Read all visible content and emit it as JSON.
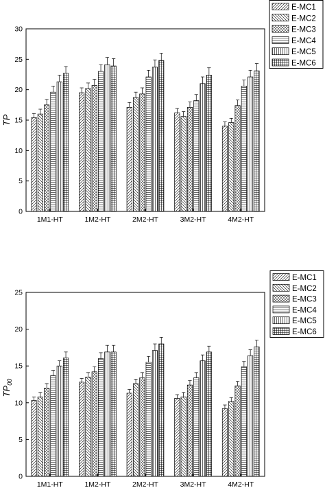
{
  "chart_data": [
    {
      "type": "bar",
      "title": "",
      "xlabel": "",
      "ylabel": "TP",
      "ylim": [
        0,
        30
      ],
      "yticks": [
        0,
        5,
        10,
        15,
        20,
        25,
        30
      ],
      "grid": false,
      "legend_position": "top-right",
      "categories": [
        "1M1-HT",
        "1M2-HT",
        "2M2-HT",
        "3M2-HT",
        "4M2-HT"
      ],
      "series": [
        {
          "name": "E-MC1",
          "values": [
            15.4,
            19.5,
            17.1,
            16.2,
            14.0
          ],
          "errors": [
            0.7,
            0.8,
            0.8,
            0.7,
            0.7
          ]
        },
        {
          "name": "E-MC2",
          "values": [
            16.0,
            20.2,
            18.7,
            15.6,
            14.6
          ],
          "errors": [
            0.8,
            0.9,
            0.9,
            0.8,
            0.7
          ]
        },
        {
          "name": "E-MC3",
          "values": [
            17.5,
            20.7,
            19.3,
            17.1,
            17.4
          ],
          "errors": [
            0.9,
            1.0,
            1.0,
            0.9,
            0.9
          ]
        },
        {
          "name": "E-MC4",
          "values": [
            19.6,
            23.0,
            22.1,
            18.2,
            20.6
          ],
          "errors": [
            1.0,
            1.1,
            1.1,
            1.0,
            1.0
          ]
        },
        {
          "name": "E-MC5",
          "values": [
            21.3,
            24.1,
            23.7,
            21.0,
            22.1
          ],
          "errors": [
            1.1,
            1.2,
            1.2,
            1.1,
            1.1
          ]
        },
        {
          "name": "E-MC6",
          "values": [
            22.7,
            23.9,
            24.8,
            22.4,
            23.1
          ],
          "errors": [
            1.1,
            1.2,
            1.2,
            1.2,
            1.2
          ]
        }
      ]
    },
    {
      "type": "bar",
      "title": "",
      "xlabel": "",
      "ylabel": "TP",
      "ylabel_sub": "00",
      "ylim": [
        0,
        25
      ],
      "yticks": [
        0,
        5,
        10,
        15,
        20,
        25
      ],
      "grid": false,
      "legend_position": "top-right",
      "categories": [
        "1M1-HT",
        "1M2-HT",
        "2M2-HT",
        "3M2-HT",
        "4M2-HT"
      ],
      "series": [
        {
          "name": "E-MC1",
          "values": [
            10.3,
            12.8,
            11.3,
            10.6,
            9.2
          ],
          "errors": [
            0.5,
            0.5,
            0.5,
            0.5,
            0.5
          ]
        },
        {
          "name": "E-MC2",
          "values": [
            10.8,
            13.5,
            12.6,
            10.8,
            10.2
          ],
          "errors": [
            0.6,
            0.6,
            0.6,
            0.6,
            0.5
          ]
        },
        {
          "name": "E-MC3",
          "values": [
            12.0,
            14.2,
            13.4,
            12.4,
            12.3
          ],
          "errors": [
            0.6,
            0.7,
            0.7,
            0.6,
            0.6
          ]
        },
        {
          "name": "E-MC4",
          "values": [
            13.7,
            16.0,
            15.5,
            13.4,
            14.9
          ],
          "errors": [
            0.7,
            0.8,
            0.8,
            0.7,
            0.7
          ]
        },
        {
          "name": "E-MC5",
          "values": [
            15.0,
            16.9,
            17.1,
            15.7,
            16.4
          ],
          "errors": [
            0.7,
            0.9,
            0.9,
            0.8,
            0.8
          ]
        },
        {
          "name": "E-MC6",
          "values": [
            16.1,
            16.9,
            18.0,
            16.9,
            17.6
          ],
          "errors": [
            0.8,
            0.9,
            0.9,
            0.8,
            0.9
          ]
        }
      ]
    }
  ]
}
